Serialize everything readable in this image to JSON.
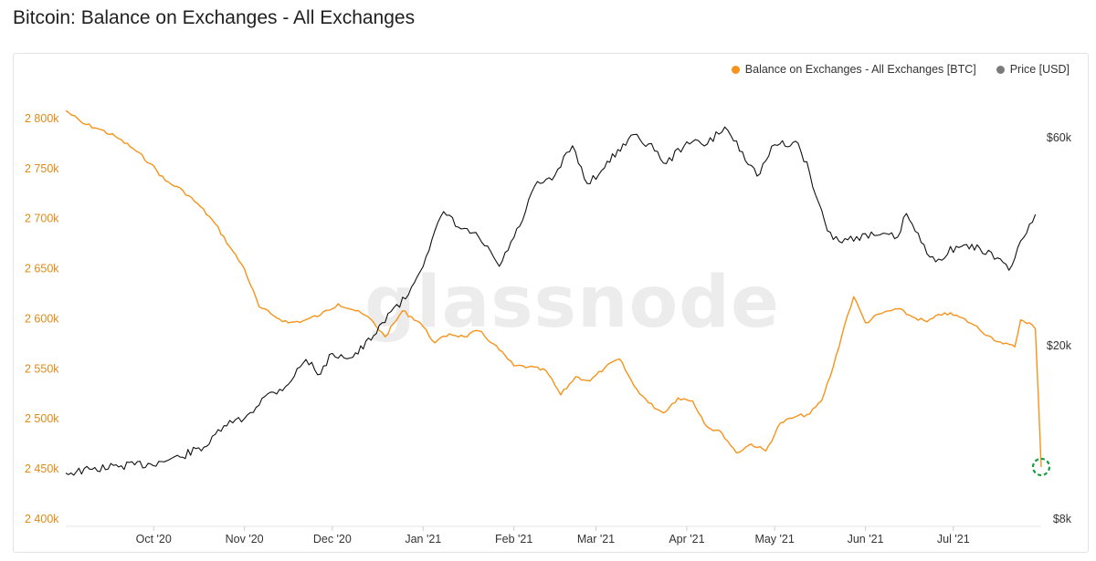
{
  "page": {
    "title": "Bitcoin: Balance on Exchanges - All Exchanges",
    "watermark": "glassnode"
  },
  "legend": [
    {
      "label": "Balance on Exchanges - All Exchanges [BTC]",
      "color": "#f7931a"
    },
    {
      "label": "Price [USD]",
      "color": "#7a7a7a"
    }
  ],
  "chart_data": {
    "type": "line",
    "x_axis": {
      "tick_labels": [
        "Oct '20",
        "Nov '20",
        "Dec '20",
        "Jan '21",
        "Feb '21",
        "Mar '21",
        "Apr '21",
        "May '21",
        "Jun '21",
        "Jul '21"
      ],
      "tick_dates": [
        "2020-10-01",
        "2020-11-01",
        "2020-12-01",
        "2021-01-01",
        "2021-02-01",
        "2021-03-01",
        "2021-04-01",
        "2021-05-01",
        "2021-06-01",
        "2021-07-01"
      ],
      "range": [
        "2020-09-01",
        "2021-07-29"
      ]
    },
    "y_axis_left": {
      "tick_labels": [
        "2 800k",
        "2 750k",
        "2 700k",
        "2 650k",
        "2 600k",
        "2 550k",
        "2 500k",
        "2 450k",
        "2 400k"
      ],
      "ticks": [
        2800000,
        2750000,
        2700000,
        2650000,
        2600000,
        2550000,
        2500000,
        2450000,
        2400000
      ],
      "range": [
        2400000,
        2810000
      ],
      "color": "#e08a18"
    },
    "y_axis_right": {
      "tick_labels": [
        "$60k",
        "$20k",
        "$8k"
      ],
      "ticks": [
        60000,
        20000,
        8000
      ],
      "scale": "log",
      "range": [
        8000,
        70000
      ]
    },
    "grid": false,
    "legend_position": "top-right",
    "series": [
      {
        "name": "Balance on Exchanges - All Exchanges [BTC]",
        "axis": "left",
        "color": "#f7931a",
        "points": [
          [
            "2020-09-01",
            2808000
          ],
          [
            "2020-09-07",
            2795000
          ],
          [
            "2020-09-12",
            2790000
          ],
          [
            "2020-09-18",
            2782000
          ],
          [
            "2020-09-24",
            2770000
          ],
          [
            "2020-09-30",
            2755000
          ],
          [
            "2020-10-05",
            2738000
          ],
          [
            "2020-10-11",
            2728000
          ],
          [
            "2020-10-17",
            2712000
          ],
          [
            "2020-10-22",
            2695000
          ],
          [
            "2020-10-27",
            2672000
          ],
          [
            "2020-11-01",
            2650000
          ],
          [
            "2020-11-06",
            2612000
          ],
          [
            "2020-11-11",
            2603000
          ],
          [
            "2020-11-16",
            2596000
          ],
          [
            "2020-11-21",
            2598000
          ],
          [
            "2020-11-27",
            2604000
          ],
          [
            "2020-12-03",
            2615000
          ],
          [
            "2020-12-09",
            2608000
          ],
          [
            "2020-12-14",
            2600000
          ],
          [
            "2020-12-19",
            2582000
          ],
          [
            "2020-12-25",
            2608000
          ],
          [
            "2020-12-31",
            2596000
          ],
          [
            "2021-01-05",
            2576000
          ],
          [
            "2021-01-10",
            2585000
          ],
          [
            "2021-01-15",
            2582000
          ],
          [
            "2021-01-20",
            2588000
          ],
          [
            "2021-01-25",
            2575000
          ],
          [
            "2021-02-01",
            2553000
          ],
          [
            "2021-02-06",
            2552000
          ],
          [
            "2021-02-12",
            2548000
          ],
          [
            "2021-02-17",
            2524000
          ],
          [
            "2021-02-22",
            2542000
          ],
          [
            "2021-02-27",
            2538000
          ],
          [
            "2021-03-04",
            2551000
          ],
          [
            "2021-03-09",
            2560000
          ],
          [
            "2021-03-14",
            2533000
          ],
          [
            "2021-03-19",
            2516000
          ],
          [
            "2021-03-24",
            2506000
          ],
          [
            "2021-03-29",
            2521000
          ],
          [
            "2021-04-03",
            2518000
          ],
          [
            "2021-04-08",
            2492000
          ],
          [
            "2021-04-13",
            2486000
          ],
          [
            "2021-04-18",
            2466000
          ],
          [
            "2021-04-23",
            2475000
          ],
          [
            "2021-04-28",
            2468000
          ],
          [
            "2021-05-03",
            2496000
          ],
          [
            "2021-05-08",
            2502000
          ],
          [
            "2021-05-13",
            2505000
          ],
          [
            "2021-05-17",
            2518000
          ],
          [
            "2021-05-21",
            2552000
          ],
          [
            "2021-05-25",
            2595000
          ],
          [
            "2021-05-28",
            2622000
          ],
          [
            "2021-06-01",
            2596000
          ],
          [
            "2021-06-06",
            2605000
          ],
          [
            "2021-06-12",
            2610000
          ],
          [
            "2021-06-17",
            2602000
          ],
          [
            "2021-06-22",
            2597000
          ],
          [
            "2021-06-28",
            2606000
          ],
          [
            "2021-07-03",
            2602000
          ],
          [
            "2021-07-08",
            2594000
          ],
          [
            "2021-07-13",
            2583000
          ],
          [
            "2021-07-18",
            2575000
          ],
          [
            "2021-07-22",
            2572000
          ],
          [
            "2021-07-24",
            2599000
          ],
          [
            "2021-07-27",
            2596000
          ],
          [
            "2021-07-29",
            2590000
          ],
          [
            "2021-07-30",
            2524000
          ],
          [
            "2021-07-31",
            2452000
          ]
        ]
      },
      {
        "name": "Price [USD]",
        "axis": "right",
        "color": "#111111",
        "points": [
          [
            "2020-09-01",
            10200
          ],
          [
            "2020-09-10",
            10400
          ],
          [
            "2020-09-20",
            10600
          ],
          [
            "2020-09-30",
            10700
          ],
          [
            "2020-10-10",
            11100
          ],
          [
            "2020-10-20",
            11900
          ],
          [
            "2020-10-25",
            13100
          ],
          [
            "2020-11-01",
            13600
          ],
          [
            "2020-11-08",
            15300
          ],
          [
            "2020-11-15",
            16100
          ],
          [
            "2020-11-22",
            18600
          ],
          [
            "2020-11-27",
            17200
          ],
          [
            "2020-12-01",
            19200
          ],
          [
            "2020-12-08",
            18800
          ],
          [
            "2020-12-16",
            21300
          ],
          [
            "2020-12-20",
            23700
          ],
          [
            "2020-12-26",
            25600
          ],
          [
            "2021-01-02",
            32000
          ],
          [
            "2021-01-08",
            40600
          ],
          [
            "2021-01-13",
            37400
          ],
          [
            "2021-01-20",
            35500
          ],
          [
            "2021-01-27",
            30400
          ],
          [
            "2021-02-03",
            37600
          ],
          [
            "2021-02-08",
            46400
          ],
          [
            "2021-02-14",
            48000
          ],
          [
            "2021-02-21",
            57500
          ],
          [
            "2021-02-26",
            47100
          ],
          [
            "2021-03-03",
            50500
          ],
          [
            "2021-03-13",
            60800
          ],
          [
            "2021-03-19",
            58100
          ],
          [
            "2021-03-25",
            52300
          ],
          [
            "2021-04-01",
            58700
          ],
          [
            "2021-04-08",
            58000
          ],
          [
            "2021-04-14",
            63500
          ],
          [
            "2021-04-20",
            55700
          ],
          [
            "2021-04-25",
            49000
          ],
          [
            "2021-05-01",
            57800
          ],
          [
            "2021-05-09",
            58300
          ],
          [
            "2021-05-13",
            49700
          ],
          [
            "2021-05-19",
            36700
          ],
          [
            "2021-05-23",
            34700
          ],
          [
            "2021-05-29",
            35600
          ],
          [
            "2021-06-05",
            35800
          ],
          [
            "2021-06-12",
            35500
          ],
          [
            "2021-06-15",
            40200
          ],
          [
            "2021-06-22",
            32500
          ],
          [
            "2021-06-26",
            31600
          ],
          [
            "2021-07-02",
            33800
          ],
          [
            "2021-07-10",
            33500
          ],
          [
            "2021-07-16",
            31800
          ],
          [
            "2021-07-20",
            29800
          ],
          [
            "2021-07-25",
            35400
          ],
          [
            "2021-07-29",
            40000
          ]
        ]
      }
    ],
    "annotations": [
      {
        "type": "circle-marker",
        "at": [
          "2021-07-31",
          2452000
        ],
        "axis": "left",
        "color": "#1a9b3c",
        "style": "dashed"
      }
    ]
  }
}
